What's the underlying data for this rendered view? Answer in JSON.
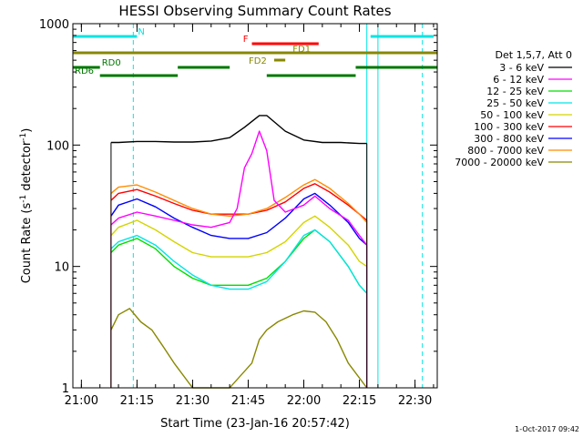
{
  "chart_data": {
    "type": "line",
    "title": "HESSI Observing Summary Count Rates",
    "xlabel": "Start Time (23-Jan-16 20:57:42)",
    "ylabel_prefix": "Count Rate (s",
    "ylabel_sup1": "-1",
    "ylabel_mid": " detector",
    "ylabel_sup2": "-1",
    "ylabel_suffix": ")",
    "y_scale": "log",
    "ylim": [
      1,
      1000
    ],
    "xlim": [
      "20:57:42",
      "22:36:00"
    ],
    "x_ticks": [
      "21:00",
      "21:15",
      "21:30",
      "21:45",
      "22:00",
      "22:15",
      "22:30"
    ],
    "y_ticks": [
      "1",
      "10",
      "100",
      "1000"
    ],
    "legend_title": "Det 1,5,7, Att 0",
    "legend_placement": "right",
    "series": [
      {
        "name": "3 - 6 keV",
        "color": "#000000",
        "x": [
          "21:08",
          "21:10",
          "21:15",
          "21:20",
          "21:25",
          "21:30",
          "21:35",
          "21:40",
          "21:44",
          "21:48",
          "21:50",
          "21:55",
          "22:00",
          "22:05",
          "22:10",
          "22:15",
          "22:17"
        ],
        "y": [
          105,
          105,
          107,
          107,
          106,
          106,
          108,
          115,
          140,
          175,
          175,
          130,
          110,
          105,
          105,
          103,
          103
        ]
      },
      {
        "name": "6 - 12 keV",
        "color": "#ff00ff",
        "x": [
          "21:08",
          "21:10",
          "21:15",
          "21:20",
          "21:25",
          "21:30",
          "21:35",
          "21:40",
          "21:42",
          "21:44",
          "21:46",
          "21:48",
          "21:50",
          "21:52",
          "21:55",
          "22:00",
          "22:03",
          "22:07",
          "22:12",
          "22:15",
          "22:17"
        ],
        "y": [
          22,
          25,
          28,
          26,
          24,
          22,
          21,
          23,
          30,
          65,
          85,
          130,
          90,
          35,
          28,
          32,
          38,
          30,
          24,
          18,
          15
        ]
      },
      {
        "name": "12 - 25 keV",
        "color": "#00dd00",
        "x": [
          "21:08",
          "21:10",
          "21:15",
          "21:20",
          "21:25",
          "21:30",
          "21:35",
          "21:40",
          "21:45",
          "21:50",
          "21:55",
          "22:00",
          "22:03",
          "22:07",
          "22:12",
          "22:15",
          "22:17"
        ],
        "y": [
          13,
          15,
          17,
          14,
          10,
          8,
          7,
          7,
          7,
          8,
          11,
          17,
          20,
          16,
          10,
          7,
          6
        ]
      },
      {
        "name": "25 - 50 keV",
        "color": "#00e5e5",
        "x": [
          "21:08",
          "21:10",
          "21:15",
          "21:20",
          "21:25",
          "21:30",
          "21:35",
          "21:40",
          "21:45",
          "21:50",
          "21:55",
          "22:00",
          "22:03",
          "22:07",
          "22:12",
          "22:15",
          "22:17"
        ],
        "y": [
          14,
          16,
          18,
          15,
          11,
          8.5,
          7,
          6.5,
          6.5,
          7.5,
          11,
          18,
          20,
          16,
          10,
          7,
          6
        ]
      },
      {
        "name": "50 - 100 keV",
        "color": "#d4d400",
        "x": [
          "21:08",
          "21:10",
          "21:15",
          "21:20",
          "21:25",
          "21:30",
          "21:35",
          "21:40",
          "21:45",
          "21:50",
          "21:55",
          "22:00",
          "22:03",
          "22:07",
          "22:12",
          "22:15",
          "22:17"
        ],
        "y": [
          18,
          21,
          24,
          20,
          16,
          13,
          12,
          12,
          12,
          13,
          16,
          23,
          26,
          21,
          15,
          11,
          10
        ]
      },
      {
        "name": "100 - 300 keV",
        "color": "#ff0000",
        "x": [
          "21:08",
          "21:10",
          "21:15",
          "21:20",
          "21:25",
          "21:30",
          "21:35",
          "21:40",
          "21:45",
          "21:50",
          "21:55",
          "22:00",
          "22:03",
          "22:07",
          "22:12",
          "22:15",
          "22:17"
        ],
        "y": [
          35,
          40,
          43,
          38,
          33,
          29,
          27,
          27,
          27,
          29,
          34,
          44,
          48,
          41,
          32,
          27,
          24
        ]
      },
      {
        "name": "300 - 800 keV",
        "color": "#0000ff",
        "x": [
          "21:08",
          "21:10",
          "21:15",
          "21:20",
          "21:25",
          "21:30",
          "21:35",
          "21:40",
          "21:45",
          "21:50",
          "21:55",
          "22:00",
          "22:03",
          "22:07",
          "22:12",
          "22:15",
          "22:17"
        ],
        "y": [
          26,
          32,
          36,
          31,
          25,
          21,
          18,
          17,
          17,
          19,
          25,
          36,
          40,
          32,
          23,
          17,
          15
        ]
      },
      {
        "name": "800 - 7000 keV",
        "color": "#ff8c00",
        "x": [
          "21:08",
          "21:10",
          "21:15",
          "21:20",
          "21:25",
          "21:30",
          "21:35",
          "21:40",
          "21:45",
          "21:50",
          "21:55",
          "22:00",
          "22:03",
          "22:07",
          "22:12",
          "22:15",
          "22:17"
        ],
        "y": [
          40,
          45,
          47,
          41,
          35,
          30,
          27,
          26,
          27,
          30,
          37,
          47,
          52,
          44,
          33,
          27,
          23
        ]
      },
      {
        "name": "7000 - 20000 keV",
        "color": "#888800",
        "x": [
          "21:08",
          "21:10",
          "21:13",
          "21:16",
          "21:19",
          "21:22",
          "21:25",
          "21:30",
          "21:40",
          "21:46",
          "21:48",
          "21:50",
          "21:53",
          "21:57",
          "22:00",
          "22:03",
          "22:06",
          "22:09",
          "22:12",
          "22:17"
        ],
        "y": [
          3,
          4,
          4.5,
          3.5,
          3,
          2.2,
          1.6,
          1,
          1,
          1.6,
          2.5,
          3,
          3.5,
          4,
          4.3,
          4.2,
          3.5,
          2.5,
          1.6,
          1
        ]
      }
    ],
    "flag_bars": [
      {
        "label": "N",
        "color": "#00e5e5",
        "segments": [
          [
            "20:57:42",
            "21:15"
          ],
          [
            "22:18",
            "22:35"
          ]
        ]
      },
      {
        "label": "F",
        "color": "#ff0000",
        "segments": [
          [
            "21:46",
            "22:04"
          ]
        ]
      },
      {
        "label": "FD1",
        "color": "#888800",
        "segments": [
          [
            "20:57:42",
            "22:36"
          ]
        ]
      },
      {
        "label": "FD2",
        "color": "#888800",
        "segments": [
          [
            "21:52",
            "21:55"
          ]
        ]
      },
      {
        "label": "RD0",
        "color": "#007700",
        "segments": [
          [
            "20:57:42",
            "21:05"
          ],
          [
            "21:26",
            "21:40"
          ],
          [
            "22:14",
            "22:36"
          ]
        ]
      },
      {
        "label": "RD6",
        "color": "#007700",
        "segments": [
          [
            "21:05",
            "21:26"
          ],
          [
            "21:50",
            "22:14"
          ]
        ]
      }
    ],
    "vlines": [
      {
        "x": "20:57:42",
        "style": "solid",
        "color": "#00e5e5"
      },
      {
        "x": "21:14",
        "style": "dashed",
        "color": "#00e5e5"
      },
      {
        "x": "22:17",
        "style": "solid",
        "color": "#00e5e5"
      },
      {
        "x": "22:20",
        "style": "solid",
        "color": "#00e5e5"
      },
      {
        "x": "22:32",
        "style": "dashed",
        "color": "#00e5e5"
      }
    ],
    "footer": "1-Oct-2017 09:42"
  }
}
